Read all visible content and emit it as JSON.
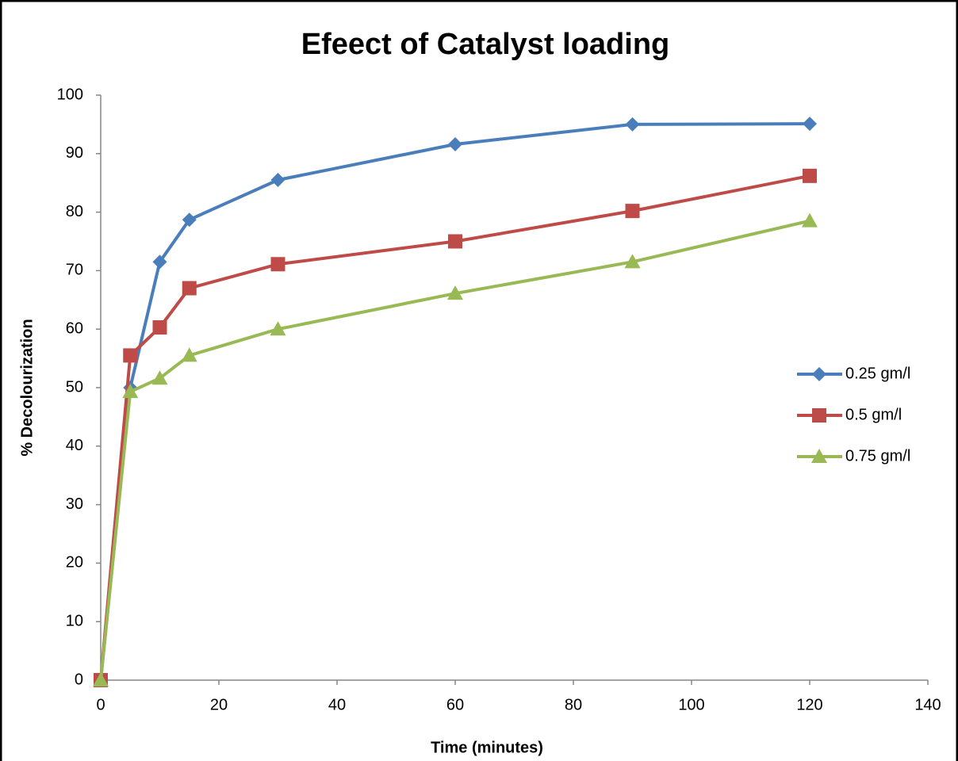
{
  "chart_data": {
    "type": "line",
    "title": "Efeect of Catalyst loading",
    "x_label": "Time (minutes)",
    "y_label": "% Decolourization",
    "x": [
      0,
      5,
      10,
      15,
      30,
      60,
      90,
      120
    ],
    "series": [
      {
        "name": "0.25 gm/l",
        "color": "#4a7ebb",
        "marker": "diamond",
        "values": [
          0,
          50,
          71.5,
          78.7,
          85.5,
          91.6,
          95,
          95.1
        ]
      },
      {
        "name": "0.5 gm/l",
        "color": "#be4b48",
        "marker": "square",
        "values": [
          0,
          55.5,
          60.3,
          67,
          71.1,
          75,
          80.2,
          86.2
        ]
      },
      {
        "name": "0.75 gm/l",
        "color": "#98b954",
        "marker": "triangle",
        "values": [
          0,
          49.3,
          51.6,
          55.5,
          60,
          66.1,
          71.5,
          78.5
        ]
      }
    ],
    "xlim": [
      0,
      140
    ],
    "xticks": [
      0,
      20,
      40,
      60,
      80,
      100,
      120,
      140
    ],
    "ylim": [
      0,
      100
    ],
    "yticks": [
      0,
      10,
      20,
      30,
      40,
      50,
      60,
      70,
      80,
      90,
      100
    ],
    "grid": false,
    "legend": "right"
  }
}
